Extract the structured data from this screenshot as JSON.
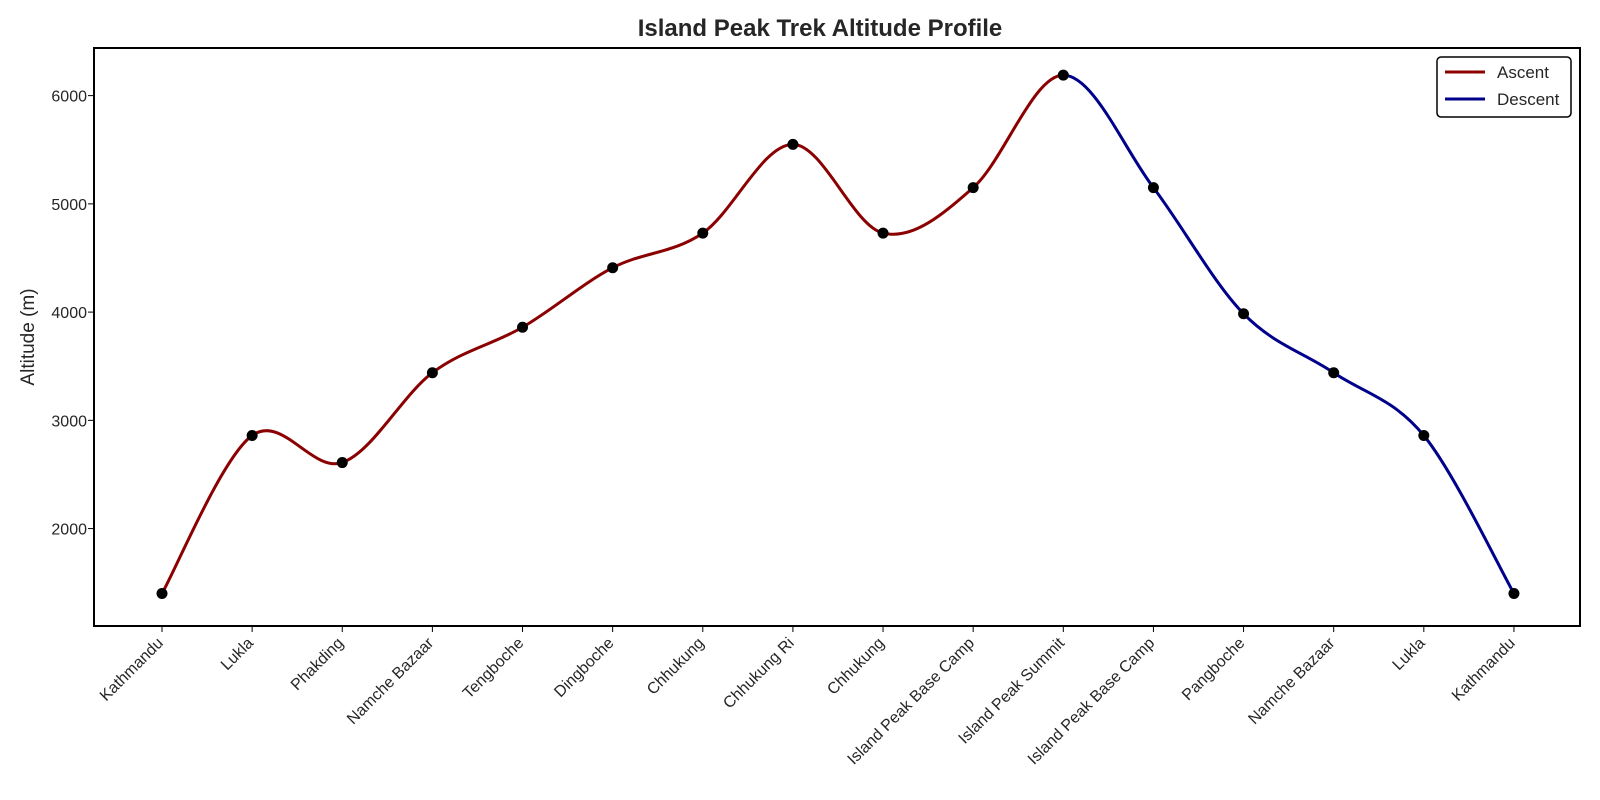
{
  "chart_data": {
    "type": "line",
    "title": "Island Peak Trek Altitude Profile",
    "xlabel": "",
    "ylabel": "Altitude (m)",
    "categories": [
      "Kathmandu",
      "Lukla",
      "Phakding",
      "Namche Bazaar",
      "Tengboche",
      "Dingboche",
      "Chhukung",
      "Chhukung Ri",
      "Chhukung",
      "Island Peak Base Camp",
      "Island Peak Summit",
      "Island Peak Base Camp",
      "Pangboche",
      "Namche Bazaar",
      "Lukla",
      "Kathmandu"
    ],
    "values": [
      1400,
      2860,
      2610,
      3440,
      3860,
      4410,
      4730,
      5550,
      4730,
      5150,
      6189,
      5150,
      3985,
      3440,
      2860,
      1400
    ],
    "series": [
      {
        "name": "Ascent",
        "color": "#8b0000",
        "start_index": 0,
        "end_index": 10
      },
      {
        "name": "Descent",
        "color": "#00008b",
        "start_index": 10,
        "end_index": 15
      }
    ],
    "marker_color": "#000000",
    "ylim": [
      1100,
      6440
    ],
    "yticks": [
      2000,
      3000,
      4000,
      5000,
      6000
    ],
    "grid": false,
    "legend_position": "top-right",
    "smooth": true
  }
}
